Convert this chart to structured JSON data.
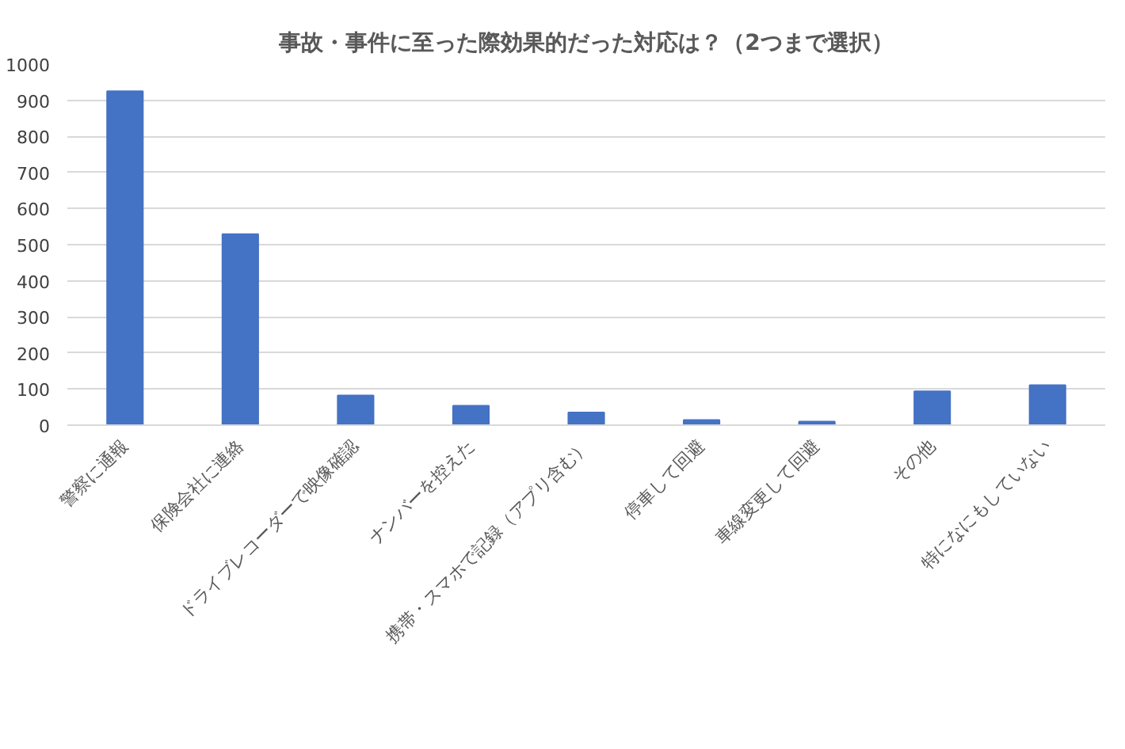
{
  "chart_data": {
    "type": "bar",
    "title": "事故・事件に至った際効果的だった対応は？（2つまで選択）",
    "categories": [
      "警察に通報",
      "保険会社に連絡",
      "ドライブレコーダーで映像確認",
      "ナンバーを控えた",
      "携帯・スマホで記録（アプリ含む）",
      "停車して回避",
      "車線変更して回避",
      "その他",
      "特になにもしていない"
    ],
    "values": [
      925,
      529,
      82,
      54,
      35,
      14,
      10,
      94,
      111
    ],
    "color": "#4472c4",
    "ylim": [
      0,
      1000
    ],
    "yticks": [
      0,
      100,
      200,
      300,
      400,
      500,
      600,
      700,
      800,
      900,
      1000
    ],
    "grid": "y"
  }
}
